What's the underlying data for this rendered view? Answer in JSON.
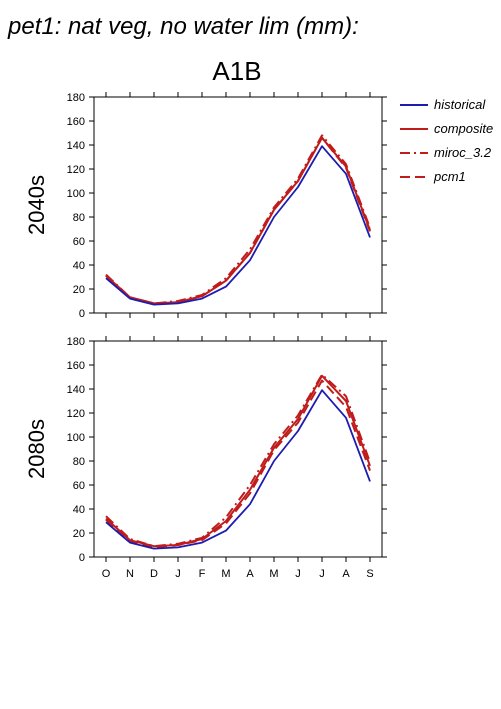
{
  "figure": {
    "title": "pet1: nat veg, no water lim (mm):",
    "subtitle": "A1B"
  },
  "colors": {
    "historical": "#1c1cb0",
    "scenario": "#c01c1c"
  },
  "legend": {
    "placement": "right",
    "entries": [
      {
        "label": "historical",
        "style": "solid",
        "color": "#1c1cb0"
      },
      {
        "label": "composite",
        "style": "solid",
        "color": "#c01c1c"
      },
      {
        "label": "miroc_3.2",
        "style": "dashdot",
        "color": "#c01c1c"
      },
      {
        "label": "pcm1",
        "style": "dashed",
        "color": "#c01c1c"
      }
    ]
  },
  "chart_data": [
    {
      "type": "line",
      "ylabel": "2040s",
      "categories": [
        "O",
        "N",
        "D",
        "J",
        "F",
        "M",
        "A",
        "M",
        "J",
        "J",
        "A",
        "S"
      ],
      "ylim": [
        0,
        180
      ],
      "yticks": [
        0,
        20,
        40,
        60,
        80,
        100,
        120,
        140,
        160,
        180
      ],
      "series": [
        {
          "name": "historical",
          "style": "solid",
          "values": [
            29,
            12,
            7,
            8,
            12,
            22,
            44,
            80,
            105,
            139,
            116,
            63
          ]
        },
        {
          "name": "composite",
          "style": "solid",
          "values": [
            31,
            13,
            8,
            9,
            14,
            27,
            50,
            86,
            110,
            146,
            122,
            69
          ]
        },
        {
          "name": "miroc_3.2",
          "style": "dashdot",
          "values": [
            32,
            13,
            8,
            10,
            15,
            29,
            53,
            88,
            112,
            148,
            124,
            71
          ]
        },
        {
          "name": "pcm1",
          "style": "dashed",
          "values": [
            31,
            13,
            8,
            9,
            14,
            27,
            50,
            86,
            110,
            146,
            121,
            68
          ]
        }
      ]
    },
    {
      "type": "line",
      "ylabel": "2080s",
      "categories": [
        "O",
        "N",
        "D",
        "J",
        "F",
        "M",
        "A",
        "M",
        "J",
        "J",
        "A",
        "S"
      ],
      "ylim": [
        0,
        180
      ],
      "yticks": [
        0,
        20,
        40,
        60,
        80,
        100,
        120,
        140,
        160,
        180
      ],
      "series": [
        {
          "name": "historical",
          "style": "solid",
          "values": [
            29,
            12,
            7,
            8,
            12,
            22,
            44,
            80,
            105,
            139,
            116,
            63
          ]
        },
        {
          "name": "composite",
          "style": "solid",
          "values": [
            32,
            14,
            9,
            10,
            15,
            30,
            56,
            91,
            115,
            151,
            130,
            76
          ]
        },
        {
          "name": "miroc_3.2",
          "style": "dashdot",
          "values": [
            34,
            15,
            9,
            11,
            16,
            33,
            60,
            94,
            118,
            152,
            134,
            79
          ]
        },
        {
          "name": "pcm1",
          "style": "dashed",
          "values": [
            31,
            13,
            8,
            10,
            14,
            28,
            53,
            89,
            112,
            147,
            125,
            72
          ]
        }
      ]
    }
  ]
}
